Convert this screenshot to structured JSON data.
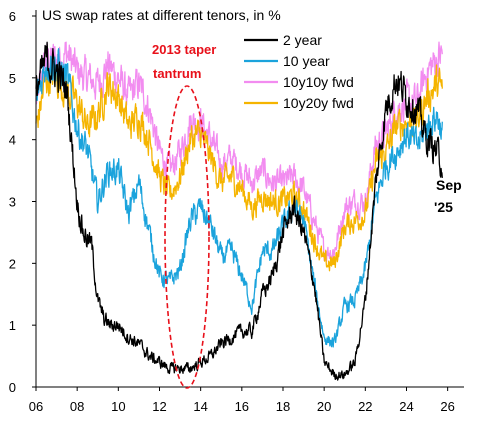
{
  "chart_data": {
    "type": "line",
    "title": "US swap rates at different tenors, in %",
    "xlabel": "",
    "ylabel": "",
    "xlim": [
      2006,
      2026.6
    ],
    "ylim": [
      0,
      6
    ],
    "x_ticks": [
      {
        "value": 2006,
        "label": "06"
      },
      {
        "value": 2008,
        "label": "08"
      },
      {
        "value": 2010,
        "label": "10"
      },
      {
        "value": 2012,
        "label": "12"
      },
      {
        "value": 2014,
        "label": "14"
      },
      {
        "value": 2016,
        "label": "16"
      },
      {
        "value": 2018,
        "label": "18"
      },
      {
        "value": 2020,
        "label": "20"
      },
      {
        "value": 2022,
        "label": "22"
      },
      {
        "value": 2024,
        "label": "24"
      },
      {
        "value": 2026,
        "label": "26"
      }
    ],
    "y_ticks": [
      {
        "value": 0,
        "label": "0"
      },
      {
        "value": 1,
        "label": "1"
      },
      {
        "value": 2,
        "label": "2"
      },
      {
        "value": 3,
        "label": "3"
      },
      {
        "value": 4,
        "label": "4"
      },
      {
        "value": 5,
        "label": "5"
      },
      {
        "value": 6,
        "label": "6"
      }
    ],
    "grid": false,
    "legend_position": "top-right",
    "colors": {
      "2 year": "#000000",
      "10 year": "#1ba3dc",
      "10y10y fwd": "#f28cf0",
      "10y20y fwd": "#f5b400",
      "annotation": "#e8101a"
    },
    "series": [
      {
        "name": "10y10y fwd",
        "x": [
          2006.0,
          2006.5,
          2007.0,
          2007.5,
          2008.0,
          2008.5,
          2009.0,
          2009.5,
          2010.0,
          2010.5,
          2011.0,
          2011.5,
          2012.0,
          2012.5,
          2013.0,
          2013.5,
          2014.0,
          2014.5,
          2015.0,
          2015.5,
          2016.0,
          2016.5,
          2017.0,
          2017.5,
          2018.0,
          2018.5,
          2019.0,
          2019.5,
          2020.0,
          2020.5,
          2021.0,
          2021.5,
          2022.0,
          2022.5,
          2023.0,
          2023.5,
          2024.0,
          2024.5,
          2025.0,
          2025.5,
          2025.75
        ],
        "y": [
          4.6,
          5.3,
          5.3,
          5.4,
          5.1,
          5.0,
          4.9,
          5.2,
          5.0,
          4.7,
          4.9,
          4.5,
          3.8,
          3.5,
          3.8,
          4.3,
          4.3,
          4.0,
          3.6,
          3.7,
          3.5,
          3.3,
          3.5,
          3.3,
          3.3,
          3.4,
          3.2,
          2.7,
          2.2,
          2.2,
          2.9,
          3.0,
          3.0,
          3.9,
          4.1,
          4.5,
          4.6,
          4.6,
          5.1,
          5.3,
          5.4
        ]
      },
      {
        "name": "10y20y fwd",
        "x": [
          2006.0,
          2006.5,
          2007.0,
          2007.5,
          2008.0,
          2008.5,
          2009.0,
          2009.5,
          2010.0,
          2010.5,
          2011.0,
          2011.5,
          2012.0,
          2012.5,
          2013.0,
          2013.5,
          2014.0,
          2014.5,
          2015.0,
          2015.5,
          2016.0,
          2016.5,
          2017.0,
          2017.5,
          2018.0,
          2018.5,
          2019.0,
          2019.5,
          2020.0,
          2020.5,
          2021.0,
          2021.5,
          2022.0,
          2022.5,
          2023.0,
          2023.5,
          2024.0,
          2024.5,
          2025.0,
          2025.5,
          2025.75
        ],
        "y": [
          4.2,
          5.0,
          5.0,
          4.8,
          4.6,
          4.2,
          4.4,
          4.9,
          4.7,
          4.2,
          4.4,
          4.0,
          3.4,
          3.1,
          3.4,
          4.0,
          4.1,
          3.7,
          3.3,
          3.4,
          3.2,
          2.9,
          3.1,
          3.0,
          3.0,
          3.1,
          2.9,
          2.4,
          2.0,
          2.0,
          2.6,
          2.7,
          2.8,
          3.6,
          3.8,
          4.2,
          4.3,
          4.3,
          4.7,
          4.9,
          4.8
        ]
      },
      {
        "name": "10 year",
        "x": [
          2006.0,
          2006.5,
          2007.0,
          2007.5,
          2008.0,
          2008.5,
          2009.0,
          2009.5,
          2010.0,
          2010.5,
          2011.0,
          2011.5,
          2012.0,
          2012.5,
          2013.0,
          2013.5,
          2014.0,
          2014.5,
          2015.0,
          2015.5,
          2016.0,
          2016.5,
          2017.0,
          2017.5,
          2018.0,
          2018.5,
          2019.0,
          2019.5,
          2020.0,
          2020.5,
          2021.0,
          2021.5,
          2022.0,
          2022.5,
          2023.0,
          2023.5,
          2024.0,
          2024.5,
          2025.0,
          2025.5,
          2025.75
        ],
        "y": [
          4.6,
          5.3,
          5.2,
          5.0,
          4.2,
          3.8,
          3.0,
          3.5,
          3.5,
          2.8,
          3.3,
          2.5,
          1.8,
          1.7,
          1.9,
          2.7,
          2.9,
          2.6,
          2.1,
          2.2,
          1.8,
          1.3,
          2.2,
          2.2,
          2.6,
          2.9,
          2.7,
          1.7,
          0.8,
          0.7,
          1.3,
          1.4,
          1.9,
          3.0,
          3.6,
          3.8,
          4.1,
          3.9,
          4.2,
          4.4,
          4.1
        ]
      },
      {
        "name": "2 year",
        "x": [
          2006.0,
          2006.5,
          2007.0,
          2007.5,
          2008.0,
          2008.3,
          2008.7,
          2009.0,
          2009.3,
          2009.6,
          2010.0,
          2010.5,
          2011.0,
          2011.5,
          2012.0,
          2012.5,
          2013.0,
          2013.5,
          2014.0,
          2014.5,
          2015.0,
          2015.5,
          2016.0,
          2016.5,
          2017.0,
          2017.5,
          2018.0,
          2018.5,
          2019.0,
          2019.5,
          2020.0,
          2020.5,
          2021.0,
          2021.5,
          2022.0,
          2022.5,
          2023.0,
          2023.5,
          2024.0,
          2024.5,
          2025.0,
          2025.5,
          2025.75
        ],
        "y": [
          4.8,
          5.3,
          5.1,
          4.8,
          3.0,
          2.5,
          2.3,
          1.4,
          1.1,
          1.0,
          1.0,
          0.8,
          0.7,
          0.5,
          0.4,
          0.3,
          0.3,
          0.3,
          0.4,
          0.5,
          0.7,
          0.8,
          0.9,
          0.9,
          1.5,
          1.8,
          2.5,
          2.9,
          2.5,
          1.7,
          0.4,
          0.2,
          0.2,
          0.4,
          1.4,
          3.3,
          4.5,
          5.0,
          4.7,
          4.5,
          4.0,
          3.8,
          3.6
        ]
      }
    ],
    "legend": [
      {
        "name": "2 year",
        "label": "2 year"
      },
      {
        "name": "10 year",
        "label": "10 year"
      },
      {
        "name": "10y10y fwd",
        "label": "10y10y fwd"
      },
      {
        "name": "10y20y fwd",
        "label": "10y20y fwd"
      }
    ],
    "annotations": [
      {
        "id": "taper",
        "lines": [
          "2013 taper",
          "tantrum"
        ],
        "x": 2013.6,
        "y": 2.0
      },
      {
        "id": "end",
        "lines": [
          "Sep",
          "'25"
        ]
      }
    ]
  }
}
